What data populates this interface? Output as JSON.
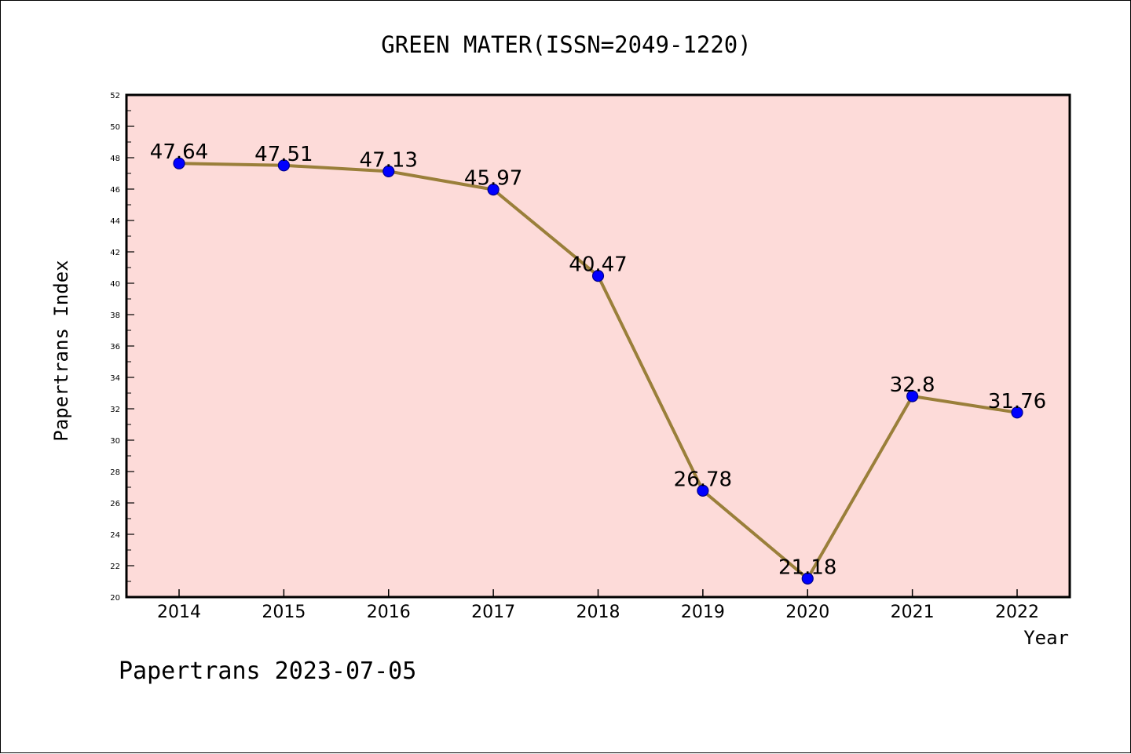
{
  "chart_data": {
    "type": "line",
    "title": "GREEN MATER(ISSN=2049-1220)",
    "xlabel": "Year",
    "ylabel": "Papertrans Index",
    "footer": "Papertrans 2023-07-05",
    "x": [
      "2014",
      "2015",
      "2016",
      "2017",
      "2018",
      "2019",
      "2020",
      "2021",
      "2022"
    ],
    "series": [
      {
        "values": [
          47.64,
          47.51,
          47.13,
          45.97,
          40.47,
          26.78,
          21.18,
          32.8,
          31.76
        ],
        "labels": [
          "47.64",
          "47.51",
          "47.13",
          "45.97",
          "40.47",
          "26.78",
          "21.18",
          "32.8",
          "31.76"
        ]
      }
    ],
    "ylim": [
      20,
      52
    ],
    "y_major_ticks": [
      "20",
      "22",
      "24",
      "26",
      "28",
      "30",
      "32",
      "34",
      "36",
      "38",
      "40",
      "42",
      "44",
      "46",
      "48",
      "50",
      "52"
    ],
    "grid": false,
    "legend": "none",
    "colors": {
      "plot_background": "#fddbd9",
      "line": "#9a7f3a",
      "marker_fill": "#0000ff",
      "marker_edge": "#00008b",
      "axis": "#000000",
      "text": "#000000"
    }
  }
}
